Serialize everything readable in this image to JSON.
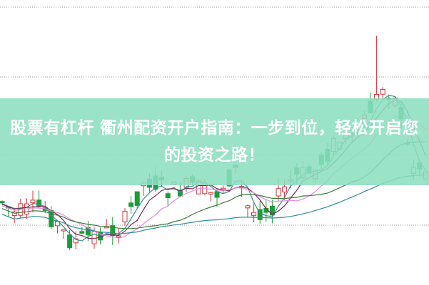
{
  "article": {
    "title": "股票有杠杆 衢州配资开户指南：一步到位，轻松开启您的投资之路！"
  },
  "colors": {
    "banner": "#8cdec0",
    "up_candle": "#d0343a",
    "down_candle": "#1f9a3a",
    "gridline": "#9a9a9a"
  },
  "background": {
    "type": "candlestick-chart",
    "moving_averages": [
      "teal",
      "purple",
      "pink",
      "green",
      "blue-gray"
    ]
  }
}
